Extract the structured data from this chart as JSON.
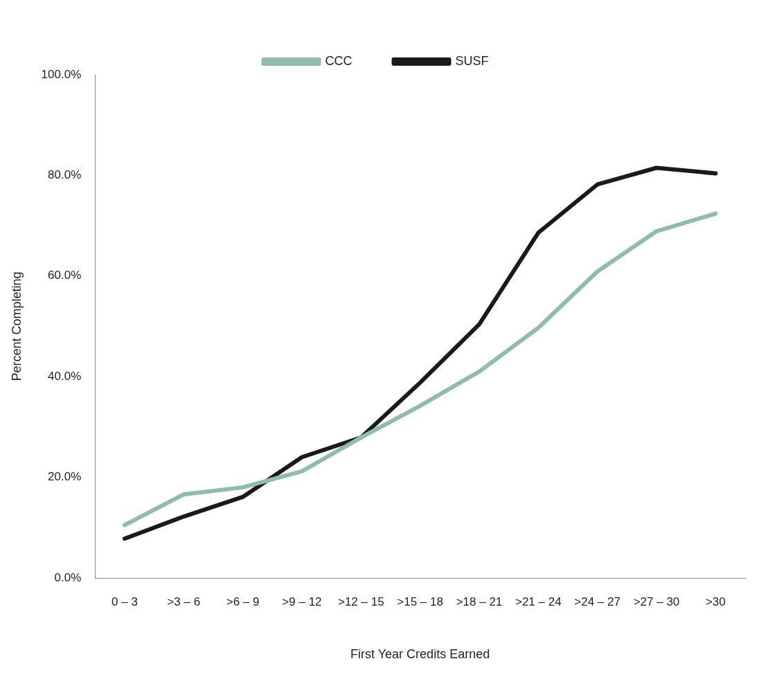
{
  "chart_data": {
    "type": "line",
    "xlabel": "First Year Credits Earned",
    "ylabel": "Percent Completing",
    "categories": [
      "0 – 3",
      ">3 – 6",
      ">6 – 9",
      ">9 – 12",
      ">12 – 15",
      ">15 – 18",
      ">18 – 21",
      ">21 – 24",
      ">24 – 27",
      ">27 – 30",
      ">30"
    ],
    "series": [
      {
        "name": "CCC",
        "color": "#8fbcac",
        "values": [
          10.5,
          16.6,
          18,
          21.2,
          27.9,
          34.2,
          41,
          49.7,
          60.9,
          68.9,
          72.4
        ]
      },
      {
        "name": "SUSF",
        "color": "#1a1a1a",
        "values": [
          7.8,
          12.2,
          16.1,
          24,
          27.9,
          38.8,
          50.4,
          68.6,
          78.2,
          81.5,
          80.4
        ]
      }
    ],
    "ylim": [
      0,
      100
    ],
    "yticks": [
      {
        "value": 0,
        "label": "0.0%"
      },
      {
        "value": 20,
        "label": "20.0%"
      },
      {
        "value": 40,
        "label": "40.0%"
      },
      {
        "value": 60,
        "label": "60.0%"
      },
      {
        "value": 80,
        "label": "80.0%"
      },
      {
        "value": 100,
        "label": "100.0%"
      }
    ],
    "grid": false,
    "legend": "top",
    "marker": "none",
    "line_style": "solid"
  }
}
